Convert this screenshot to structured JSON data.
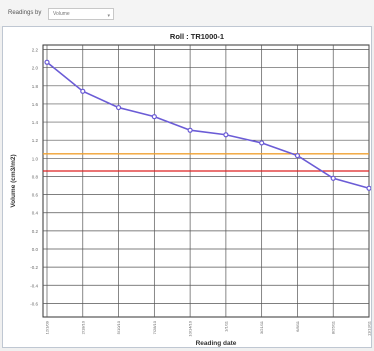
{
  "toolbar": {
    "label": "Readings by",
    "select_value": "Volume",
    "dropdown_icon": "chevron-down-icon"
  },
  "chart_data": {
    "type": "line",
    "title": "Roll : TR1000-1",
    "xlabel": "Reading date",
    "ylabel": "Volume (cm3/m2)",
    "x": [
      "1",
      "2",
      "3",
      "4",
      "5",
      "6",
      "7",
      "8",
      "9",
      "10"
    ],
    "x_tick_labels": [
      "12/1/09",
      "2/18/10",
      "5/10/10",
      "7/28/10",
      "10/14/10",
      "1/1/11",
      "3/21/11",
      "6/8/11",
      "8/26/11",
      "11/13/11"
    ],
    "series": [
      {
        "values": [
          2.06,
          1.74,
          1.56,
          1.46,
          1.31,
          1.26,
          1.17,
          1.03,
          0.78,
          0.67
        ],
        "color": "#6b5cd6"
      }
    ],
    "reference_lines": [
      {
        "value": 1.05,
        "color": "#f0a030"
      },
      {
        "value": 0.86,
        "color": "#dd2020"
      }
    ],
    "ylim": [
      -0.75,
      2.25
    ],
    "y_ticks": [
      "2.2",
      "2.0",
      "1.8",
      "1.6",
      "1.4",
      "1.2",
      "1.0",
      "0.8",
      "0.6",
      "0.4",
      "0.2",
      "0.0",
      "-0.2",
      "-0.4",
      "-0.6"
    ],
    "grid": true,
    "colors": {
      "grid": "#555555",
      "plot_border": "#333333",
      "title": "#222222"
    }
  }
}
